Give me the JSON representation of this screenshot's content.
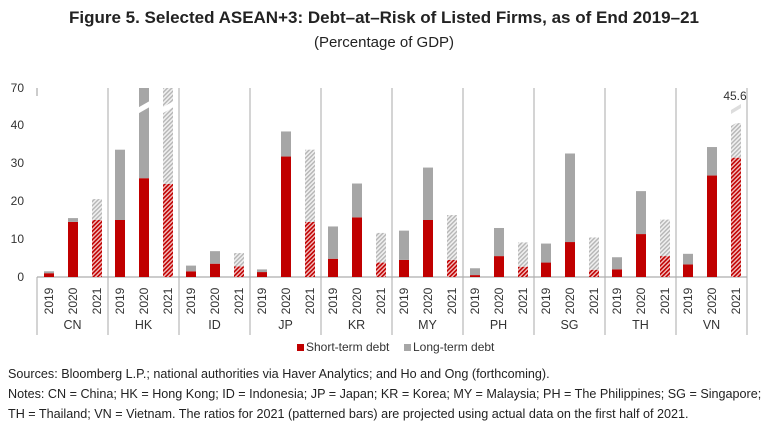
{
  "chart_data": {
    "type": "bar",
    "stacked": true,
    "title": "Figure 5. Selected ASEAN+3: Debt–at–Risk of Listed Firms, as of End 2019–21",
    "subtitle": "(Percentage of GDP)",
    "xlabel": "",
    "ylabel": "",
    "ylim": [
      0,
      70
    ],
    "y_ticks": [
      "0",
      "10",
      "20",
      "30",
      "40",
      "70"
    ],
    "axis_break": [
      40,
      70
    ],
    "groups": [
      "CN",
      "HK",
      "ID",
      "JP",
      "KR",
      "MY",
      "PH",
      "SG",
      "TH",
      "VN"
    ],
    "years": [
      "2019",
      "2020",
      "2021"
    ],
    "projected_year": "2021",
    "series": [
      {
        "name": "Short-term debt",
        "color": "#c00000",
        "values": [
          [
            1.0,
            14.5,
            15.0
          ],
          [
            15.0,
            26.0,
            24.5
          ],
          [
            1.5,
            3.5,
            2.8
          ],
          [
            1.3,
            31.7,
            14.5
          ],
          [
            4.8,
            15.7,
            3.8
          ],
          [
            4.5,
            15.0,
            4.5
          ],
          [
            0.5,
            5.5,
            2.7
          ],
          [
            3.8,
            9.2,
            1.9
          ],
          [
            2.0,
            11.3,
            5.5
          ],
          [
            3.3,
            26.7,
            31.4
          ]
        ]
      },
      {
        "name": "Long-term debt",
        "color": "#a6a6a6",
        "values": [
          [
            0.5,
            1.0,
            5.5
          ],
          [
            18.5,
            36.0,
            31.0
          ],
          [
            1.5,
            3.3,
            3.5
          ],
          [
            0.7,
            6.6,
            19.0
          ],
          [
            8.5,
            8.9,
            7.8
          ],
          [
            7.7,
            13.8,
            11.8
          ],
          [
            1.8,
            7.4,
            6.4
          ],
          [
            5.0,
            23.3,
            8.5
          ],
          [
            3.2,
            11.3,
            9.6
          ],
          [
            2.8,
            7.5,
            14.2
          ]
        ]
      }
    ],
    "annotations": [
      {
        "group": "VN",
        "year": "2021",
        "text": "45.6"
      }
    ],
    "legend": "bottom-right"
  },
  "notes": {
    "sources": "Sources: Bloomberg L.P.; national authorities via Haver Analytics; and Ho and Ong (forthcoming).",
    "notes": "Notes: CN = China; HK = Hong Kong; ID = Indonesia; JP = Japan; KR = Korea; MY = Malaysia; PH = The Philippines; SG = Singapore; TH = Thailand; VN = Vietnam. The ratios for 2021 (patterned bars) are projected using actual data on the first half of 2021."
  }
}
